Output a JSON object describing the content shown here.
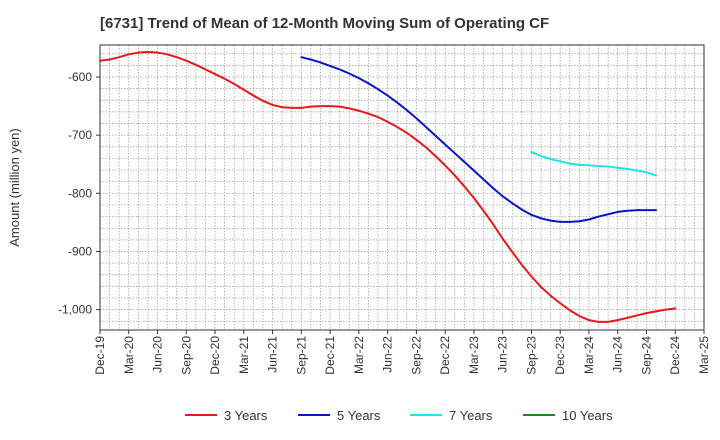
{
  "chart_data": {
    "type": "line",
    "title": "[6731]  Trend of Mean of 12-Month Moving Sum of Operating CF",
    "xlabel": "",
    "ylabel": "Amount (million yen)",
    "ylim": [
      -1035,
      -545
    ],
    "yticks": [
      -600,
      -700,
      -800,
      -900,
      -1000
    ],
    "ytick_labels": [
      "-600",
      "-700",
      "-800",
      "-900",
      "-1,000"
    ],
    "x_start": "Dec-19",
    "x_end": "Mar-25",
    "x_tick_labels": [
      "Dec-19",
      "Mar-20",
      "Jun-20",
      "Sep-20",
      "Dec-20",
      "Mar-21",
      "Jun-21",
      "Sep-21",
      "Dec-21",
      "Mar-22",
      "Jun-22",
      "Sep-22",
      "Dec-22",
      "Mar-23",
      "Jun-23",
      "Sep-23",
      "Dec-23",
      "Mar-24",
      "Jun-24",
      "Sep-24",
      "Dec-24",
      "Mar-25"
    ],
    "grid": true,
    "legend_position": "bottom",
    "series": [
      {
        "name": "3 Years",
        "color": "#e41a1c",
        "start_index": 0,
        "values": [
          -572,
          -570,
          -566,
          -561,
          -558,
          -557,
          -558,
          -561,
          -566,
          -572,
          -579,
          -587,
          -595,
          -603,
          -612,
          -622,
          -632,
          -641,
          -648,
          -652,
          -653,
          -653,
          -651,
          -650,
          -650,
          -651,
          -654,
          -658,
          -663,
          -669,
          -677,
          -686,
          -696,
          -708,
          -721,
          -736,
          -752,
          -769,
          -788,
          -808,
          -830,
          -853,
          -878,
          -901,
          -923,
          -943,
          -961,
          -976,
          -989,
          -1001,
          -1011,
          -1018,
          -1021,
          -1021,
          -1018,
          -1014,
          -1010,
          -1006,
          -1003,
          -1000,
          -998
        ]
      },
      {
        "name": "5 Years",
        "color": "#0a14c8",
        "start_index": 21,
        "values": [
          -566,
          -570,
          -575,
          -581,
          -587,
          -594,
          -602,
          -611,
          -621,
          -632,
          -644,
          -657,
          -671,
          -686,
          -701,
          -716,
          -731,
          -746,
          -761,
          -776,
          -791,
          -805,
          -817,
          -828,
          -837,
          -843,
          -847,
          -849,
          -849,
          -848,
          -845,
          -840,
          -836,
          -832,
          -830,
          -829,
          -829,
          -829
        ]
      },
      {
        "name": "7 Years",
        "color": "#1ee6e6",
        "start_index": 45,
        "values": [
          -729,
          -736,
          -741,
          -745,
          -749,
          -751,
          -752,
          -753,
          -754,
          -756,
          -758,
          -761,
          -764,
          -769
        ]
      },
      {
        "name": "10 Years",
        "color": "#1a8a1a",
        "start_index": 0,
        "values": []
      }
    ]
  }
}
